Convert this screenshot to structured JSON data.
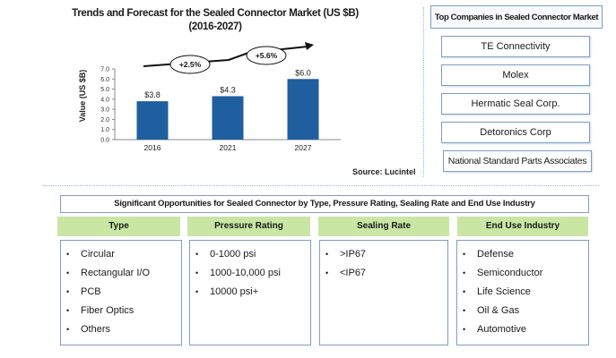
{
  "chart_data": {
    "type": "bar",
    "title_line1": "Trends and Forecast for the Sealed Connector Market (US $B)",
    "title_line2": "(2016-2027)",
    "categories": [
      "2016",
      "2021",
      "2027"
    ],
    "values": [
      3.8,
      4.3,
      6.0
    ],
    "value_labels": [
      "$3.8",
      "$4.3",
      "$6.0"
    ],
    "ylabel": "Value (US $B)",
    "ylim": [
      0,
      7
    ],
    "yticks": [
      "0.0",
      "1.0",
      "2.0",
      "3.0",
      "4.0",
      "5.0",
      "6.0",
      "7.0"
    ],
    "bar_color": "#1f5f9f",
    "cagr_labels": [
      "+2.5%",
      "+5.6%"
    ],
    "grid": false
  },
  "source": "Source:  Lucintel",
  "companies": {
    "header": "Top Companies in Sealed Connector Market",
    "items": [
      "TE Connectivity",
      "Molex",
      "Hermatic Seal Corp.",
      "Detoronics Corp",
      "National Standard Parts Associates"
    ]
  },
  "opportunities": {
    "title": "Significant  Opportunities  for Sealed Connector by Type, Pressure  Rating, Sealing Rate and End Use Industry",
    "header_color": "#c9e6a4",
    "columns": [
      {
        "header": "Type",
        "items": [
          "Circular",
          "Rectangular  I/O",
          "PCB",
          "Fiber Optics",
          "Others"
        ]
      },
      {
        "header": "Pressure   Rating",
        "items": [
          "0-1000 psi",
          "1000-10,000 psi",
          "10000 psi+"
        ]
      },
      {
        "header": "Sealing Rate",
        "items": [
          ">IP67",
          "<IP67"
        ]
      },
      {
        "header": "End Use Industry",
        "items": [
          "Defense",
          "Semiconductor",
          "Life Science",
          "Oil & Gas",
          "Automotive"
        ]
      }
    ]
  }
}
